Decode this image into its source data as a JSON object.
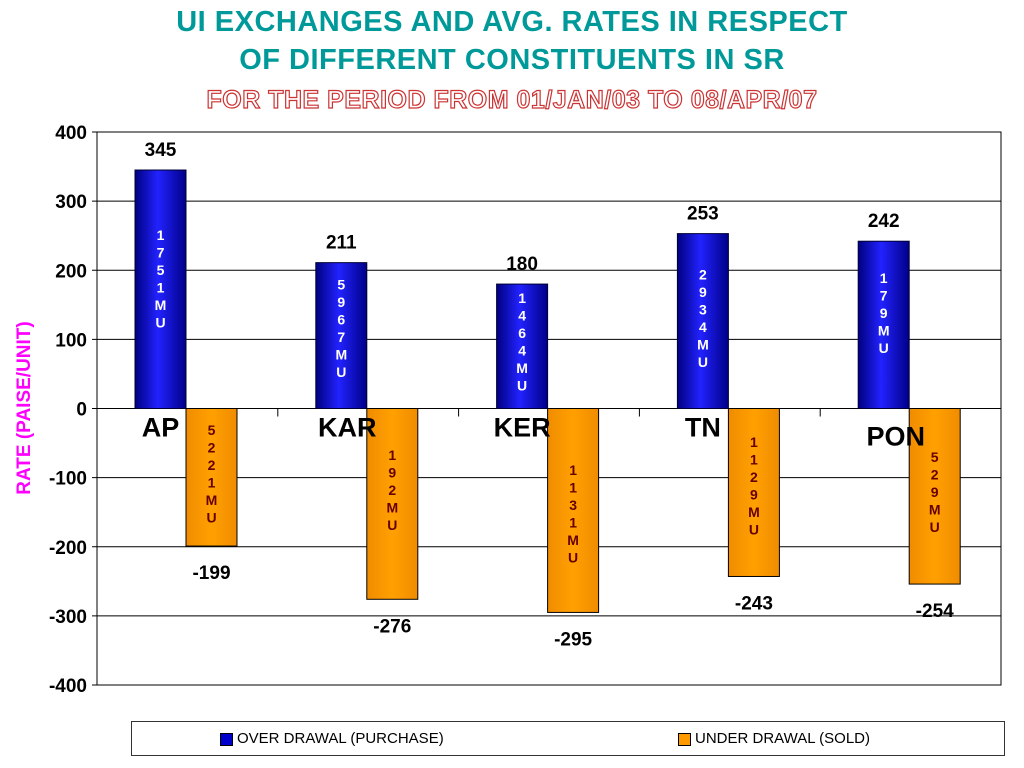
{
  "chart_data": {
    "type": "bar",
    "title": [
      "UI EXCHANGES AND AVG. RATES IN RESPECT",
      "OF DIFFERENT CONSTITUENTS IN SR"
    ],
    "subtitle": "FOR THE PERIOD FROM 01/JAN/03 TO 08/APR/07",
    "ylabel": "RATE (PAISE/UNIT)",
    "xlabel": "",
    "ylim": [
      -400,
      400
    ],
    "yticks": [
      400,
      300,
      200,
      100,
      0,
      -100,
      -200,
      -300,
      -400
    ],
    "grid": true,
    "legend_position": "bottom",
    "categories": [
      "AP",
      "KAR",
      "KER",
      "TN",
      "PON"
    ],
    "series": [
      {
        "name": "OVER DRAWAL (PURCHASE)",
        "color": "#0000cc",
        "values": [
          345,
          211,
          180,
          253,
          242
        ],
        "labels": [
          "345",
          "211",
          "180",
          "253",
          "242"
        ],
        "bar_text": [
          "1751MU",
          "5967MU",
          "1464MU",
          "2934MU",
          "179MU"
        ]
      },
      {
        "name": "UNDER DRAWAL (SOLD)",
        "color": "#ff9900",
        "values": [
          -199,
          -276,
          -295,
          -243,
          -254
        ],
        "labels": [
          "-199",
          "-276",
          "-295",
          "-243",
          "-254"
        ],
        "bar_text": [
          "5221MU",
          "192MU",
          "1131MU",
          "1129MU",
          "529MU"
        ]
      }
    ]
  }
}
